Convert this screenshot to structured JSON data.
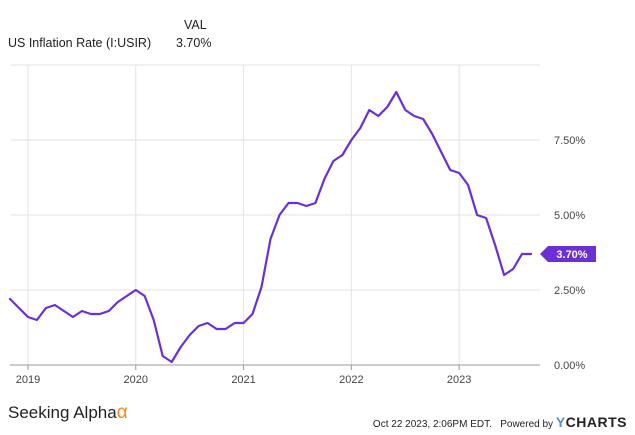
{
  "legend": {
    "header": "VAL",
    "series_name": "US Inflation Rate (I:USIR)",
    "series_value": "3.70%"
  },
  "footer": {
    "brand_left": "Seeking Alpha",
    "brand_left_symbol": "α",
    "timestamp": "Oct 22 2023, 2:06PM EDT.",
    "powered_by": "Powered by",
    "ycharts_y": "Y",
    "ycharts_rest": "CHARTS"
  },
  "colors": {
    "series": "#6a2fd6",
    "grid": "#e3e3e3",
    "axis_text": "#444444"
  },
  "chart_data": {
    "type": "line",
    "title": "",
    "xlabel": "",
    "ylabel": "",
    "ylim": [
      0,
      10
    ],
    "y_ticks": [
      0,
      2.5,
      5,
      7.5
    ],
    "y_tick_labels": [
      "0.00%",
      "2.50%",
      "5.00%",
      "7.50%"
    ],
    "x_ticks": [
      "2019-01",
      "2020-01",
      "2021-01",
      "2022-01",
      "2023-01"
    ],
    "x_tick_labels": [
      "2019",
      "2020",
      "2021",
      "2022",
      "2023"
    ],
    "end_label": "3.70%",
    "grid": true,
    "series": [
      {
        "name": "US Inflation Rate (I:USIR)",
        "x": [
          "2018-11",
          "2018-12",
          "2019-01",
          "2019-02",
          "2019-03",
          "2019-04",
          "2019-05",
          "2019-06",
          "2019-07",
          "2019-08",
          "2019-09",
          "2019-10",
          "2019-11",
          "2019-12",
          "2020-01",
          "2020-02",
          "2020-03",
          "2020-04",
          "2020-05",
          "2020-06",
          "2020-07",
          "2020-08",
          "2020-09",
          "2020-10",
          "2020-11",
          "2020-12",
          "2021-01",
          "2021-02",
          "2021-03",
          "2021-04",
          "2021-05",
          "2021-06",
          "2021-07",
          "2021-08",
          "2021-09",
          "2021-10",
          "2021-11",
          "2021-12",
          "2022-01",
          "2022-02",
          "2022-03",
          "2022-04",
          "2022-05",
          "2022-06",
          "2022-07",
          "2022-08",
          "2022-09",
          "2022-10",
          "2022-11",
          "2022-12",
          "2023-01",
          "2023-02",
          "2023-03",
          "2023-04",
          "2023-05",
          "2023-06",
          "2023-07",
          "2023-08",
          "2023-09"
        ],
        "values": [
          2.2,
          1.9,
          1.6,
          1.5,
          1.9,
          2.0,
          1.8,
          1.6,
          1.8,
          1.7,
          1.7,
          1.8,
          2.1,
          2.3,
          2.5,
          2.3,
          1.5,
          0.3,
          0.1,
          0.6,
          1.0,
          1.3,
          1.4,
          1.2,
          1.2,
          1.4,
          1.4,
          1.7,
          2.6,
          4.2,
          5.0,
          5.4,
          5.4,
          5.3,
          5.4,
          6.2,
          6.8,
          7.0,
          7.5,
          7.9,
          8.5,
          8.3,
          8.6,
          9.1,
          8.5,
          8.3,
          8.2,
          7.7,
          7.1,
          6.5,
          6.4,
          6.0,
          5.0,
          4.9,
          4.0,
          3.0,
          3.2,
          3.7,
          3.7
        ]
      }
    ]
  }
}
